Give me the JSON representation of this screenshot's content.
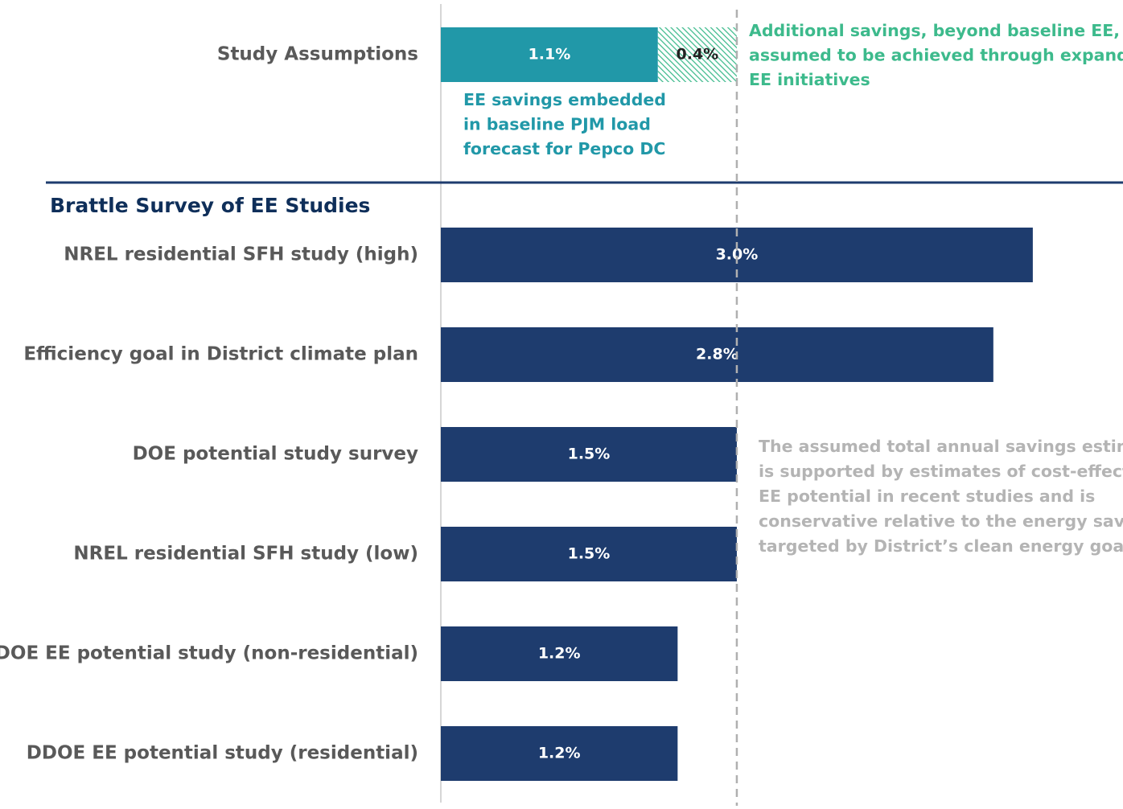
{
  "chart_data": {
    "type": "bar",
    "orientation": "horizontal",
    "xlim": [
      0,
      3.4
    ],
    "reference_value": 1.5,
    "assumptions": {
      "label": "Study Assumptions",
      "values": [
        1.1,
        0.4
      ],
      "value_labels": [
        "1.1%",
        "0.4%"
      ],
      "colors": [
        "#2198a8",
        "#3dba8c"
      ],
      "hatched": [
        false,
        true
      ],
      "annotations": [
        {
          "lines": [
            "EE savings embedded",
            "in baseline PJM load",
            "forecast for Pepco DC"
          ],
          "color": "#2198a8"
        },
        {
          "lines": [
            "Additional savings, beyond baseline EE,",
            "assumed to be achieved through expanded",
            "EE initiatives"
          ],
          "color": "#3dba8c"
        }
      ]
    },
    "section_title": "Brattle Survey of EE Studies",
    "categories": [
      "NREL residential SFH study (high)",
      "Efficiency goal in District climate plan",
      "DOE potential study survey",
      "NREL residential SFH study (low)",
      "DDOE EE potential study (non-residential)",
      "DDOE EE potential study (residential)"
    ],
    "values": [
      3.0,
      2.8,
      1.5,
      1.5,
      1.2,
      1.2
    ],
    "value_labels": [
      "3.0%",
      "2.8%",
      "1.5%",
      "1.5%",
      "1.2%",
      "1.2%"
    ],
    "color": "#1e3c6e",
    "annotation": {
      "lines": [
        "The assumed total annual savings estimate",
        "is supported by estimates of cost-effective",
        "EE potential in recent studies and is",
        "conservative relative to the energy savings",
        "targeted by District’s clean energy goals"
      ],
      "color": "#b4b4b4"
    }
  }
}
